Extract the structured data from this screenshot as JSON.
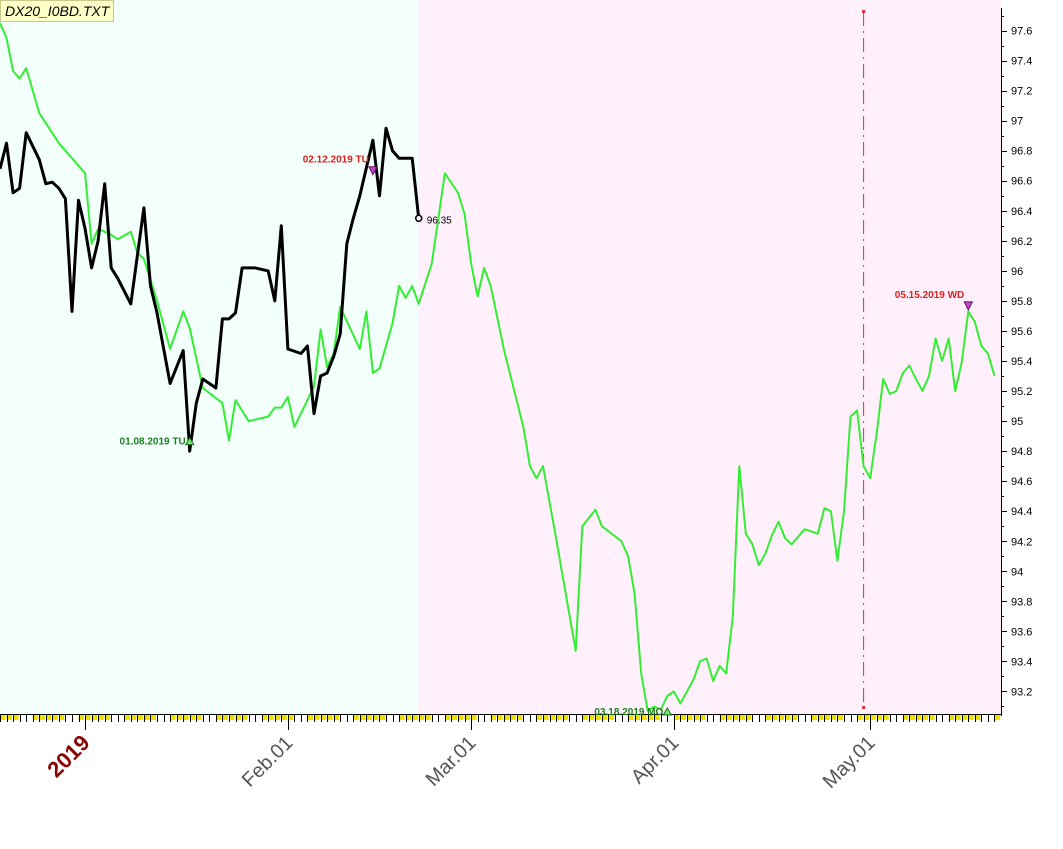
{
  "chart_data": {
    "type": "line",
    "title": "DX20_I0BD.TXT",
    "y_axis": {
      "position": "right",
      "range": [
        93.05,
        97.75
      ],
      "ticks": [
        "93.2",
        "93.4",
        "93.6",
        "93.8",
        "94",
        "94.2",
        "94.4",
        "94.6",
        "94.8",
        "95",
        "95.2",
        "95.4",
        "95.6",
        "95.8",
        "96",
        "96.2",
        "96.4",
        "96.6",
        "96.8",
        "97",
        "97.2",
        "97.4",
        "97.6"
      ]
    },
    "x_axis": {
      "range": [
        "2018-12-19",
        "2019-05-21"
      ],
      "labels": [
        {
          "text": "2019",
          "date": "2019-01-01",
          "highlight": true
        },
        {
          "text": "Feb.01",
          "date": "2019-02-01"
        },
        {
          "text": "Mar.01",
          "date": "2019-03-01"
        },
        {
          "text": "Apr.01",
          "date": "2019-04-01"
        },
        {
          "text": "May.01",
          "date": "2019-05-01"
        }
      ]
    },
    "background_regions": [
      {
        "from": "2018-12-19",
        "to": "2019-02-21",
        "color": "#f2fffb"
      },
      {
        "from": "2019-02-21",
        "to": "2019-05-21",
        "color": "#fff0fb"
      }
    ],
    "vertical_marker": {
      "date": "2019-04-30",
      "color": "#e03030"
    },
    "series": [
      {
        "color": "#33ee33",
        "points": [
          [
            "2018-12-19",
            97.65
          ],
          [
            "2018-12-20",
            97.55
          ],
          [
            "2018-12-21",
            97.33
          ],
          [
            "2018-12-22",
            97.28
          ],
          [
            "2018-12-23",
            97.35
          ],
          [
            "2018-12-25",
            97.05
          ],
          [
            "2018-12-28",
            96.85
          ],
          [
            "2019-01-01",
            96.65
          ],
          [
            "2019-01-02",
            96.18
          ],
          [
            "2019-01-03",
            96.28
          ],
          [
            "2019-01-05",
            96.24
          ],
          [
            "2019-01-06",
            96.21
          ],
          [
            "2019-01-08",
            96.26
          ],
          [
            "2019-01-09",
            96.12
          ],
          [
            "2019-01-10",
            96.08
          ],
          [
            "2019-01-12",
            95.8
          ],
          [
            "2019-01-14",
            95.48
          ],
          [
            "2019-01-16",
            95.73
          ],
          [
            "2019-01-17",
            95.62
          ],
          [
            "2019-01-19",
            95.22
          ],
          [
            "2019-01-22",
            95.12
          ],
          [
            "2019-01-23",
            94.87
          ],
          [
            "2019-01-24",
            95.14
          ],
          [
            "2019-01-26",
            95.0
          ],
          [
            "2019-01-29",
            95.03
          ],
          [
            "2019-01-30",
            95.09
          ],
          [
            "2019-01-31",
            95.09
          ],
          [
            "2019-02-01",
            95.16
          ],
          [
            "2019-02-02",
            94.96
          ],
          [
            "2019-02-05",
            95.23
          ],
          [
            "2019-02-06",
            95.61
          ],
          [
            "2019-02-07",
            95.36
          ],
          [
            "2019-02-08",
            95.45
          ],
          [
            "2019-02-09",
            95.76
          ],
          [
            "2019-02-12",
            95.48
          ],
          [
            "2019-02-13",
            95.73
          ],
          [
            "2019-02-14",
            95.32
          ],
          [
            "2019-02-15",
            95.35
          ],
          [
            "2019-02-17",
            95.65
          ],
          [
            "2019-02-18",
            95.9
          ],
          [
            "2019-02-19",
            95.82
          ],
          [
            "2019-02-20",
            95.9
          ],
          [
            "2019-02-21",
            95.78
          ],
          [
            "2019-02-23",
            96.05
          ],
          [
            "2019-02-25",
            96.65
          ],
          [
            "2019-02-27",
            96.52
          ],
          [
            "2019-02-28",
            96.38
          ],
          [
            "2019-03-01",
            96.05
          ],
          [
            "2019-03-02",
            95.83
          ],
          [
            "2019-03-03",
            96.02
          ],
          [
            "2019-03-04",
            95.9
          ],
          [
            "2019-03-06",
            95.48
          ],
          [
            "2019-03-09",
            94.96
          ],
          [
            "2019-03-10",
            94.7
          ],
          [
            "2019-03-11",
            94.62
          ],
          [
            "2019-03-12",
            94.7
          ],
          [
            "2019-03-14",
            94.22
          ],
          [
            "2019-03-17",
            93.47
          ],
          [
            "2019-03-18",
            94.3
          ],
          [
            "2019-03-20",
            94.41
          ],
          [
            "2019-03-21",
            94.3
          ],
          [
            "2019-03-24",
            94.2
          ],
          [
            "2019-03-25",
            94.1
          ],
          [
            "2019-03-26",
            93.85
          ],
          [
            "2019-03-27",
            93.32
          ],
          [
            "2019-03-28",
            93.07
          ],
          [
            "2019-03-29",
            93.1
          ],
          [
            "2019-03-30",
            93.08
          ],
          [
            "2019-03-31",
            93.17
          ],
          [
            "2019-04-01",
            93.2
          ],
          [
            "2019-04-02",
            93.12
          ],
          [
            "2019-04-04",
            93.28
          ],
          [
            "2019-04-05",
            93.4
          ],
          [
            "2019-04-06",
            93.42
          ],
          [
            "2019-04-07",
            93.27
          ],
          [
            "2019-04-08",
            93.37
          ],
          [
            "2019-04-09",
            93.32
          ],
          [
            "2019-04-10",
            93.7
          ],
          [
            "2019-04-11",
            94.7
          ],
          [
            "2019-04-12",
            94.25
          ],
          [
            "2019-04-13",
            94.18
          ],
          [
            "2019-04-14",
            94.04
          ],
          [
            "2019-04-15",
            94.12
          ],
          [
            "2019-04-16",
            94.24
          ],
          [
            "2019-04-17",
            94.33
          ],
          [
            "2019-04-18",
            94.22
          ],
          [
            "2019-04-19",
            94.18
          ],
          [
            "2019-04-21",
            94.28
          ],
          [
            "2019-04-23",
            94.25
          ],
          [
            "2019-04-24",
            94.42
          ],
          [
            "2019-04-25",
            94.4
          ],
          [
            "2019-04-26",
            94.07
          ],
          [
            "2019-04-27",
            94.4
          ],
          [
            "2019-04-28",
            95.03
          ],
          [
            "2019-04-29",
            95.07
          ],
          [
            "2019-04-30",
            94.7
          ],
          [
            "2019-05-01",
            94.62
          ],
          [
            "2019-05-02",
            94.92
          ],
          [
            "2019-05-03",
            95.28
          ],
          [
            "2019-05-04",
            95.18
          ],
          [
            "2019-05-05",
            95.2
          ],
          [
            "2019-05-06",
            95.32
          ],
          [
            "2019-05-07",
            95.37
          ],
          [
            "2019-05-08",
            95.28
          ],
          [
            "2019-05-09",
            95.2
          ],
          [
            "2019-05-10",
            95.3
          ],
          [
            "2019-05-11",
            95.55
          ],
          [
            "2019-05-12",
            95.4
          ],
          [
            "2019-05-13",
            95.55
          ],
          [
            "2019-05-14",
            95.2
          ],
          [
            "2019-05-15",
            95.39
          ],
          [
            "2019-05-16",
            95.73
          ],
          [
            "2019-05-17",
            95.66
          ],
          [
            "2019-05-18",
            95.5
          ],
          [
            "2019-05-19",
            95.45
          ],
          [
            "2019-05-20",
            95.3
          ]
        ]
      },
      {
        "color": "#000000",
        "points": [
          [
            "2018-12-19",
            96.68
          ],
          [
            "2018-12-20",
            96.85
          ],
          [
            "2018-12-21",
            96.52
          ],
          [
            "2018-12-22",
            96.55
          ],
          [
            "2018-12-23",
            96.92
          ],
          [
            "2018-12-25",
            96.74
          ],
          [
            "2018-12-26",
            96.58
          ],
          [
            "2018-12-27",
            96.59
          ],
          [
            "2018-12-28",
            96.55
          ],
          [
            "2018-12-29",
            96.48
          ],
          [
            "2018-12-30",
            95.73
          ],
          [
            "2018-12-31",
            96.47
          ],
          [
            "2019-01-01",
            96.28
          ],
          [
            "2019-01-02",
            96.02
          ],
          [
            "2019-01-03",
            96.2
          ],
          [
            "2019-01-04",
            96.58
          ],
          [
            "2019-01-05",
            96.02
          ],
          [
            "2019-01-06",
            95.95
          ],
          [
            "2019-01-08",
            95.78
          ],
          [
            "2019-01-10",
            96.42
          ],
          [
            "2019-01-11",
            95.9
          ],
          [
            "2019-01-12",
            95.72
          ],
          [
            "2019-01-14",
            95.25
          ],
          [
            "2019-01-16",
            95.47
          ],
          [
            "2019-01-17",
            94.8
          ],
          [
            "2019-01-18",
            95.12
          ],
          [
            "2019-01-19",
            95.28
          ],
          [
            "2019-01-20",
            95.25
          ],
          [
            "2019-01-21",
            95.22
          ],
          [
            "2019-01-22",
            95.68
          ],
          [
            "2019-01-23",
            95.68
          ],
          [
            "2019-01-24",
            95.72
          ],
          [
            "2019-01-25",
            96.02
          ],
          [
            "2019-01-27",
            96.02
          ],
          [
            "2019-01-29",
            96.0
          ],
          [
            "2019-01-30",
            95.8
          ],
          [
            "2019-01-31",
            96.3
          ],
          [
            "2019-02-01",
            95.48
          ],
          [
            "2019-02-03",
            95.45
          ],
          [
            "2019-02-04",
            95.5
          ],
          [
            "2019-02-05",
            95.05
          ],
          [
            "2019-02-06",
            95.3
          ],
          [
            "2019-02-07",
            95.32
          ],
          [
            "2019-02-08",
            95.43
          ],
          [
            "2019-02-09",
            95.58
          ],
          [
            "2019-02-10",
            96.18
          ],
          [
            "2019-02-11",
            96.35
          ],
          [
            "2019-02-12",
            96.5
          ],
          [
            "2019-02-14",
            96.87
          ],
          [
            "2019-02-15",
            96.5
          ],
          [
            "2019-02-16",
            96.95
          ],
          [
            "2019-02-17",
            96.8
          ],
          [
            "2019-02-18",
            96.75
          ],
          [
            "2019-02-19",
            96.75
          ],
          [
            "2019-02-20",
            96.75
          ],
          [
            "2019-02-21",
            96.35
          ]
        ]
      }
    ],
    "annotations": [
      {
        "text": "01.08.2019 TU",
        "date": "2019-01-17",
        "value": 94.87,
        "color": "#1f7f1f",
        "marker": "up-arrow"
      },
      {
        "text": "02.12.2019 TU",
        "date": "2019-02-14",
        "value": 96.66,
        "color": "#dd2020",
        "marker": "down-arrow"
      },
      {
        "text": "03.18.2019 MO",
        "date": "2019-03-31",
        "value": 93.07,
        "color": "#1f7f1f",
        "marker": "up-arrow"
      },
      {
        "text": "05.15.2019 WD",
        "date": "2019-05-16",
        "value": 95.76,
        "color": "#dd2020",
        "marker": "down-arrow"
      }
    ],
    "last_value": {
      "text": "96.35",
      "date": "2019-02-21",
      "value": 96.35
    }
  }
}
